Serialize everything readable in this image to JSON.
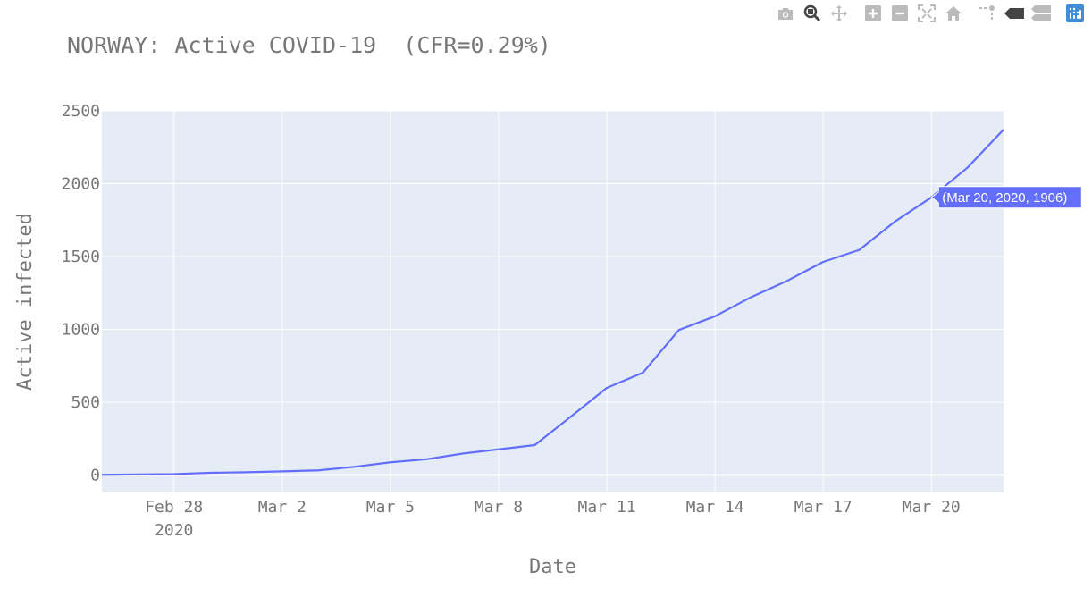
{
  "modebar": {
    "buttons": [
      "camera-icon",
      "zoom-icon",
      "pan-icon",
      "zoom-in-icon",
      "zoom-out-icon",
      "autoscale-icon",
      "home-icon",
      "spike-lines-icon",
      "hover-closest-icon",
      "hover-compare-icon",
      "plotly-logo-icon"
    ],
    "active_color": "#444444",
    "inactive_color": "#bbbbbb",
    "logo_color": "#3f8edc"
  },
  "chart_data": {
    "type": "line",
    "title": "NORWAY: Active COVID-19  (CFR=0.29%)",
    "xlabel": "Date",
    "ylabel": "Active infected",
    "x": [
      "2020-02-26",
      "2020-02-27",
      "2020-02-28",
      "2020-02-29",
      "2020-03-01",
      "2020-03-02",
      "2020-03-03",
      "2020-03-04",
      "2020-03-05",
      "2020-03-06",
      "2020-03-07",
      "2020-03-08",
      "2020-03-09",
      "2020-03-10",
      "2020-03-11",
      "2020-03-12",
      "2020-03-13",
      "2020-03-14",
      "2020-03-15",
      "2020-03-16",
      "2020-03-17",
      "2020-03-18",
      "2020-03-19",
      "2020-03-20",
      "2020-03-21",
      "2020-03-22"
    ],
    "series": [
      {
        "name": "",
        "color": "#636efa",
        "values": [
          1,
          4,
          6,
          15,
          19,
          25,
          32,
          56,
          87,
          108,
          147,
          176,
          205,
          400,
          598,
          702,
          996,
          1090,
          1221,
          1333,
          1463,
          1545,
          1742,
          1906,
          2110,
          2371
        ]
      }
    ],
    "xlim": [
      "2020-02-26",
      "2020-03-22"
    ],
    "ylim": [
      -120,
      2500
    ],
    "x_ticks": [
      {
        "date": "2020-02-28",
        "label": "Feb 28",
        "sublabel": "2020"
      },
      {
        "date": "2020-03-02",
        "label": "Mar 2",
        "sublabel": ""
      },
      {
        "date": "2020-03-05",
        "label": "Mar 5",
        "sublabel": ""
      },
      {
        "date": "2020-03-08",
        "label": "Mar 8",
        "sublabel": ""
      },
      {
        "date": "2020-03-11",
        "label": "Mar 11",
        "sublabel": ""
      },
      {
        "date": "2020-03-14",
        "label": "Mar 14",
        "sublabel": ""
      },
      {
        "date": "2020-03-17",
        "label": "Mar 17",
        "sublabel": ""
      },
      {
        "date": "2020-03-20",
        "label": "Mar 20",
        "sublabel": ""
      }
    ],
    "y_ticks": [
      0,
      500,
      1000,
      1500,
      2000,
      2500
    ],
    "grid": true,
    "plot_background": "#e5ecf6",
    "grid_color": "#ffffff",
    "hover": {
      "date": "2020-03-20",
      "value": 1906,
      "text": "(Mar 20, 2020, 1906)"
    }
  }
}
